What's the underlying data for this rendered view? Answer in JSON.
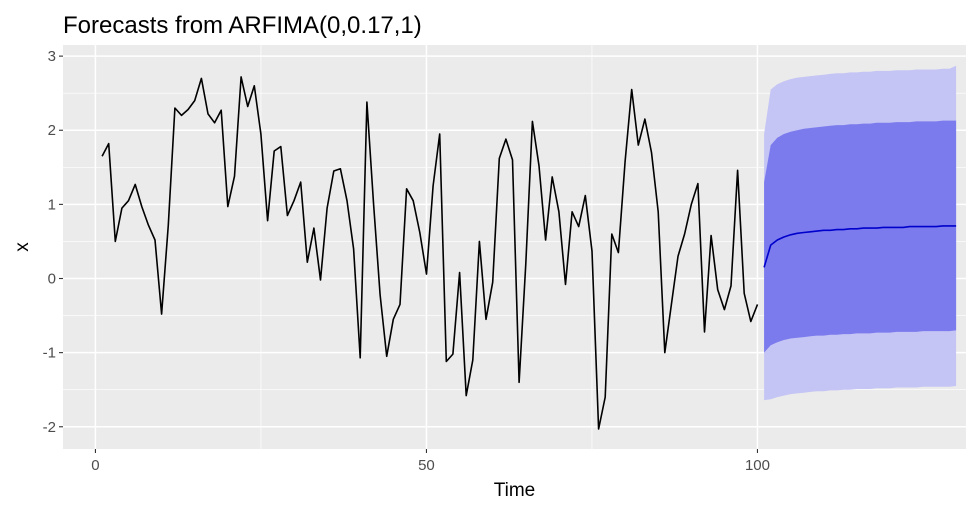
{
  "chart_data": {
    "type": "line",
    "title": "Forecasts from ARFIMA(0,0.17,1)",
    "xlabel": "Time",
    "ylabel": "x",
    "xlim": [
      -4.9,
      131.5
    ],
    "ylim": [
      -2.3,
      3.15
    ],
    "x_ticks": [
      0,
      50,
      100
    ],
    "y_ticks": [
      -2,
      -1,
      0,
      1,
      2,
      3
    ],
    "grid": true,
    "colors": {
      "panel": "#EBEBEB",
      "grid_major": "#FFFFFF",
      "series": "#000000",
      "forecast_mean": "#0000CC",
      "band_80": "#7B7BEE",
      "band_95": "#C4C4F5"
    },
    "series": [
      {
        "name": "x",
        "x_start": 1,
        "values": [
          1.65,
          1.82,
          0.5,
          0.95,
          1.05,
          1.27,
          0.97,
          0.72,
          0.52,
          -0.48,
          0.72,
          2.3,
          2.2,
          2.28,
          2.4,
          2.7,
          2.22,
          2.1,
          2.27,
          0.97,
          1.38,
          2.72,
          2.32,
          2.6,
          1.95,
          0.78,
          1.72,
          1.78,
          0.85,
          1.05,
          1.3,
          0.22,
          0.68,
          -0.02,
          0.95,
          1.45,
          1.48,
          1.05,
          0.4,
          -1.07,
          2.38,
          1.02,
          -0.22,
          -1.05,
          -0.55,
          -0.35,
          1.21,
          1.05,
          0.62,
          0.06,
          1.25,
          1.95,
          -1.12,
          -1.02,
          0.08,
          -1.58,
          -1.1,
          0.5,
          -0.55,
          -0.05,
          1.62,
          1.88,
          1.6,
          -1.4,
          0.2,
          2.12,
          1.52,
          0.52,
          1.37,
          0.9,
          -0.08,
          0.9,
          0.7,
          1.12,
          0.37,
          -2.03,
          -1.6,
          0.6,
          0.35,
          1.58,
          2.55,
          1.8,
          2.15,
          1.7,
          0.9,
          -1.0,
          -0.35,
          0.3,
          0.6,
          1.0,
          1.28,
          -0.72,
          0.58,
          -0.15,
          -0.42,
          -0.1,
          1.46,
          -0.2,
          -0.58,
          -0.35
        ]
      },
      {
        "name": "forecast",
        "x_start": 101,
        "values": [
          0.15,
          0.45,
          0.52,
          0.56,
          0.59,
          0.61,
          0.62,
          0.63,
          0.64,
          0.65,
          0.65,
          0.66,
          0.66,
          0.67,
          0.67,
          0.68,
          0.68,
          0.68,
          0.69,
          0.69,
          0.69,
          0.69,
          0.7,
          0.7,
          0.7,
          0.7,
          0.7,
          0.71,
          0.71,
          0.71
        ],
        "lo80": [
          -1.0,
          -0.9,
          -0.86,
          -0.83,
          -0.81,
          -0.8,
          -0.79,
          -0.78,
          -0.77,
          -0.77,
          -0.76,
          -0.76,
          -0.75,
          -0.75,
          -0.74,
          -0.74,
          -0.74,
          -0.73,
          -0.73,
          -0.73,
          -0.72,
          -0.72,
          -0.72,
          -0.72,
          -0.71,
          -0.71,
          -0.71,
          -0.71,
          -0.71,
          -0.7
        ],
        "hi80": [
          1.3,
          1.8,
          1.9,
          1.95,
          1.98,
          2.0,
          2.02,
          2.03,
          2.04,
          2.05,
          2.06,
          2.07,
          2.07,
          2.08,
          2.08,
          2.09,
          2.09,
          2.1,
          2.1,
          2.1,
          2.11,
          2.11,
          2.11,
          2.12,
          2.12,
          2.12,
          2.12,
          2.13,
          2.13,
          2.13
        ],
        "lo95": [
          -1.64,
          -1.63,
          -1.6,
          -1.58,
          -1.56,
          -1.55,
          -1.54,
          -1.53,
          -1.52,
          -1.52,
          -1.51,
          -1.51,
          -1.5,
          -1.5,
          -1.49,
          -1.49,
          -1.49,
          -1.48,
          -1.48,
          -1.48,
          -1.47,
          -1.47,
          -1.47,
          -1.47,
          -1.46,
          -1.46,
          -1.46,
          -1.46,
          -1.46,
          -1.45
        ],
        "hi95": [
          1.95,
          2.55,
          2.62,
          2.66,
          2.69,
          2.71,
          2.72,
          2.73,
          2.74,
          2.75,
          2.76,
          2.77,
          2.77,
          2.78,
          2.78,
          2.79,
          2.79,
          2.8,
          2.8,
          2.8,
          2.81,
          2.81,
          2.81,
          2.82,
          2.82,
          2.82,
          2.82,
          2.83,
          2.83,
          2.87
        ]
      }
    ]
  }
}
